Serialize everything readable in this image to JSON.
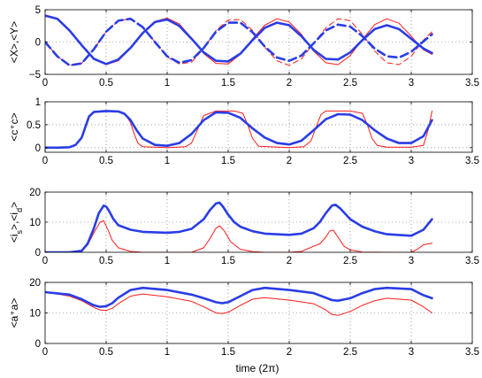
{
  "figure": {
    "xlabel": "time (2π)"
  },
  "chart_data": [
    {
      "type": "line",
      "ylabel": "<X>,<Y>",
      "xlim": [
        0,
        3.5
      ],
      "ylim": [
        -5,
        5
      ],
      "xticks": [
        "0",
        "0.5",
        "1",
        "1.5",
        "2",
        "2.5",
        "3",
        "3.5"
      ],
      "yticks": [
        "−5",
        "0",
        "5"
      ],
      "ytick_values": [
        -5,
        0,
        5
      ],
      "grid": true,
      "colors": {
        "thick": "#2a3de6",
        "thin": "#ff1a1a"
      },
      "series": [
        {
          "style": "thin-solid",
          "x": [
            0,
            0.1,
            0.2,
            0.3,
            0.4,
            0.5,
            0.6,
            0.7,
            0.8,
            0.9,
            1.0,
            1.1,
            1.2,
            1.3,
            1.4,
            1.5,
            1.6,
            1.7,
            1.8,
            1.9,
            2.0,
            2.1,
            2.2,
            2.3,
            2.4,
            2.5,
            2.6,
            2.7,
            2.8,
            2.9,
            3.0,
            3.1,
            3.17
          ],
          "y": [
            4.1,
            3.6,
            1.9,
            -0.4,
            -2.6,
            -3.5,
            -2.9,
            -1.0,
            1.4,
            3.2,
            3.7,
            2.8,
            0.6,
            -1.8,
            -3.3,
            -3.4,
            -1.9,
            0.5,
            2.6,
            3.6,
            3.1,
            1.2,
            -1.4,
            -3.2,
            -3.5,
            -2.1,
            0.4,
            2.7,
            3.6,
            2.9,
            0.9,
            -1.2,
            -1.9
          ]
        },
        {
          "style": "thin-dash",
          "x": [
            0,
            0.1,
            0.2,
            0.3,
            0.4,
            0.5,
            0.6,
            0.7,
            0.8,
            0.9,
            1.0,
            1.1,
            1.2,
            1.3,
            1.4,
            1.5,
            1.6,
            1.7,
            1.8,
            1.9,
            2.0,
            2.1,
            2.2,
            2.3,
            2.4,
            2.5,
            2.6,
            2.7,
            2.8,
            2.9,
            3.0,
            3.1,
            3.17
          ],
          "y": [
            0,
            -2.2,
            -3.6,
            -3.3,
            -1.1,
            1.6,
            3.3,
            3.6,
            2.3,
            0,
            -2.3,
            -3.4,
            -3.1,
            -1.0,
            1.8,
            3.4,
            3.5,
            1.8,
            -0.8,
            -2.9,
            -3.6,
            -2.6,
            -0.2,
            2.2,
            3.6,
            3.3,
            1.2,
            -1.4,
            -3.2,
            -3.5,
            -2.2,
            0.3,
            1.6
          ]
        },
        {
          "style": "thick-solid",
          "x": [
            0,
            0.1,
            0.2,
            0.3,
            0.4,
            0.5,
            0.6,
            0.7,
            0.8,
            0.9,
            1.0,
            1.1,
            1.2,
            1.3,
            1.4,
            1.5,
            1.6,
            1.7,
            1.8,
            1.9,
            2.0,
            2.1,
            2.2,
            2.3,
            2.4,
            2.5,
            2.6,
            2.7,
            2.8,
            2.9,
            3.0,
            3.1,
            3.17
          ],
          "y": [
            4.1,
            3.6,
            1.8,
            -0.5,
            -2.6,
            -3.4,
            -2.7,
            -0.9,
            1.4,
            3.1,
            3.5,
            2.5,
            0.5,
            -1.6,
            -2.9,
            -3.0,
            -1.8,
            0.3,
            2.2,
            3.0,
            2.6,
            0.9,
            -1.2,
            -2.6,
            -2.7,
            -1.6,
            0.3,
            2.0,
            2.6,
            2.0,
            0.5,
            -1.0,
            -1.7
          ]
        },
        {
          "style": "thick-dash",
          "x": [
            0,
            0.1,
            0.2,
            0.3,
            0.4,
            0.5,
            0.6,
            0.7,
            0.8,
            0.9,
            1.0,
            1.1,
            1.2,
            1.3,
            1.4,
            1.5,
            1.6,
            1.7,
            1.8,
            1.9,
            2.0,
            2.1,
            2.2,
            2.3,
            2.4,
            2.5,
            2.6,
            2.7,
            2.8,
            2.9,
            3.0,
            3.1,
            3.17
          ],
          "y": [
            0,
            -2.2,
            -3.6,
            -3.3,
            -1.1,
            1.6,
            3.3,
            3.6,
            2.3,
            0,
            -2.2,
            -3.2,
            -2.8,
            -0.9,
            1.6,
            3.0,
            3.0,
            1.5,
            -0.7,
            -2.4,
            -2.9,
            -2.1,
            -0.2,
            1.8,
            2.7,
            2.4,
            0.9,
            -1.0,
            -2.2,
            -2.4,
            -1.5,
            0.1,
            1.2
          ]
        }
      ]
    },
    {
      "type": "line",
      "ylabel": "<c⁺c>",
      "xlim": [
        0,
        3.5
      ],
      "ylim": [
        -0.1,
        1
      ],
      "xticks": [
        "0",
        "0.5",
        "1",
        "1.5",
        "2",
        "2.5",
        "3",
        "3.5"
      ],
      "yticks": [
        "0",
        "0.5",
        "1"
      ],
      "ytick_values": [
        0,
        0.5,
        1
      ],
      "grid": true,
      "colors": {
        "thick": "#2a3de6",
        "thin": "#ff1a1a"
      },
      "series": [
        {
          "style": "thin-solid",
          "x": [
            0,
            0.1,
            0.2,
            0.25,
            0.3,
            0.33,
            0.36,
            0.4,
            0.5,
            0.6,
            0.65,
            0.7,
            0.73,
            0.76,
            0.8,
            1.0,
            1.15,
            1.2,
            1.25,
            1.3,
            1.4,
            1.55,
            1.62,
            1.66,
            1.7,
            1.75,
            2.0,
            2.12,
            2.18,
            2.22,
            2.26,
            2.3,
            2.5,
            2.6,
            2.64,
            2.68,
            2.72,
            2.8,
            3.0,
            3.1,
            3.14,
            3.17
          ],
          "y": [
            0,
            0,
            0.01,
            0.05,
            0.2,
            0.45,
            0.7,
            0.78,
            0.8,
            0.79,
            0.75,
            0.55,
            0.3,
            0.1,
            0.02,
            0,
            0.02,
            0.1,
            0.4,
            0.7,
            0.8,
            0.8,
            0.75,
            0.5,
            0.2,
            0.03,
            0,
            0.02,
            0.15,
            0.45,
            0.72,
            0.8,
            0.8,
            0.75,
            0.5,
            0.2,
            0.05,
            0.01,
            0.01,
            0.05,
            0.4,
            0.8
          ]
        },
        {
          "style": "thick-solid",
          "x": [
            0,
            0.1,
            0.2,
            0.25,
            0.3,
            0.33,
            0.36,
            0.4,
            0.5,
            0.6,
            0.65,
            0.7,
            0.75,
            0.8,
            0.9,
            1.0,
            1.1,
            1.2,
            1.3,
            1.4,
            1.5,
            1.6,
            1.7,
            1.8,
            1.9,
            2.0,
            2.1,
            2.2,
            2.3,
            2.4,
            2.5,
            2.6,
            2.7,
            2.8,
            2.9,
            3.0,
            3.1,
            3.17
          ],
          "y": [
            0,
            0,
            0.01,
            0.06,
            0.22,
            0.45,
            0.68,
            0.78,
            0.8,
            0.79,
            0.74,
            0.6,
            0.38,
            0.2,
            0.06,
            0.04,
            0.1,
            0.3,
            0.6,
            0.77,
            0.76,
            0.65,
            0.42,
            0.22,
            0.1,
            0.07,
            0.15,
            0.38,
            0.62,
            0.73,
            0.72,
            0.6,
            0.38,
            0.2,
            0.1,
            0.1,
            0.25,
            0.6
          ]
        }
      ]
    },
    {
      "type": "line",
      "ylabel": "<i_s>,<i_d>",
      "xlim": [
        0,
        3.5
      ],
      "ylim": [
        0,
        20
      ],
      "xticks": [
        "0",
        "0.5",
        "1",
        "1.5",
        "2",
        "2.5",
        "3",
        "3.5"
      ],
      "yticks": [
        "0",
        "10",
        "20"
      ],
      "ytick_values": [
        0,
        10,
        20
      ],
      "grid": true,
      "colors": {
        "thick": "#2a3de6",
        "thin": "#ff1a1a"
      },
      "series": [
        {
          "style": "thin-solid",
          "x": [
            0,
            0.2,
            0.3,
            0.35,
            0.4,
            0.45,
            0.48,
            0.52,
            0.55,
            0.6,
            0.7,
            0.8,
            1.0,
            1.2,
            1.3,
            1.35,
            1.4,
            1.43,
            1.47,
            1.52,
            1.6,
            1.7,
            1.8,
            2.0,
            2.1,
            2.2,
            2.25,
            2.3,
            2.33,
            2.36,
            2.4,
            2.45,
            2.5,
            2.6,
            2.8,
            3.0,
            3.05,
            3.1,
            3.17
          ],
          "y": [
            0,
            0,
            0.3,
            2.5,
            6.5,
            10,
            10.5,
            7,
            4,
            1.5,
            0.3,
            0,
            0,
            0,
            1.5,
            4.5,
            8,
            8.8,
            7,
            3.5,
            1,
            0.2,
            0,
            0,
            0.3,
            2,
            2.8,
            5,
            7,
            7.4,
            5,
            2,
            0.8,
            0.1,
            0,
            0,
            1,
            2.5,
            3
          ]
        },
        {
          "style": "thick-solid",
          "x": [
            0,
            0.2,
            0.3,
            0.35,
            0.4,
            0.44,
            0.48,
            0.5,
            0.52,
            0.56,
            0.6,
            0.7,
            0.8,
            1.0,
            1.1,
            1.2,
            1.3,
            1.35,
            1.4,
            1.43,
            1.46,
            1.5,
            1.55,
            1.6,
            1.7,
            1.8,
            2.0,
            2.1,
            2.2,
            2.25,
            2.3,
            2.35,
            2.38,
            2.42,
            2.5,
            2.6,
            2.7,
            2.8,
            3.0,
            3.1,
            3.17
          ],
          "y": [
            0,
            0,
            0.5,
            3,
            8,
            13,
            15.5,
            15.2,
            14,
            11,
            9,
            7.5,
            6.8,
            6.5,
            6.8,
            7.8,
            11,
            14,
            16.2,
            16.5,
            15,
            12.5,
            10,
            8.5,
            7,
            6.2,
            5.8,
            6.2,
            8,
            10,
            13,
            15.5,
            15.8,
            14.5,
            11,
            8.5,
            7,
            6,
            5.5,
            7.5,
            11
          ]
        }
      ]
    },
    {
      "type": "line",
      "ylabel": "<a⁺a>",
      "xlim": [
        0,
        3.5
      ],
      "ylim": [
        0,
        20
      ],
      "xticks": [
        "0",
        "0.5",
        "1",
        "1.5",
        "2",
        "2.5",
        "3",
        "3.5"
      ],
      "yticks": [
        "0",
        "10",
        "20"
      ],
      "ytick_values": [
        0,
        10,
        20
      ],
      "grid": true,
      "colors": {
        "thick": "#2a3de6",
        "thin": "#ff1a1a"
      },
      "series": [
        {
          "style": "thin-solid",
          "x": [
            0,
            0.1,
            0.2,
            0.3,
            0.4,
            0.45,
            0.5,
            0.55,
            0.6,
            0.7,
            0.8,
            1.0,
            1.2,
            1.3,
            1.4,
            1.45,
            1.5,
            1.6,
            1.7,
            1.8,
            2.0,
            2.2,
            2.3,
            2.35,
            2.4,
            2.5,
            2.6,
            2.7,
            2.8,
            3.0,
            3.1,
            3.17
          ],
          "y": [
            16.8,
            16.2,
            15.5,
            14,
            11.8,
            11,
            10.8,
            11.5,
            13,
            15.5,
            16.2,
            15.3,
            13.8,
            12,
            10,
            9.8,
            10.2,
            12.5,
            14.5,
            15,
            14.2,
            13,
            11,
            9.5,
            9.2,
            10.5,
            12.5,
            14,
            14.8,
            14.2,
            12,
            10
          ]
        },
        {
          "style": "thick-solid",
          "x": [
            0,
            0.1,
            0.2,
            0.3,
            0.4,
            0.45,
            0.5,
            0.55,
            0.6,
            0.7,
            0.8,
            1.0,
            1.2,
            1.3,
            1.4,
            1.45,
            1.5,
            1.6,
            1.7,
            1.8,
            2.0,
            2.2,
            2.3,
            2.35,
            2.4,
            2.5,
            2.6,
            2.7,
            2.8,
            3.0,
            3.1,
            3.17
          ],
          "y": [
            16.8,
            16.4,
            16,
            14.5,
            12.5,
            12,
            12.2,
            13.2,
            15,
            17.5,
            18.2,
            17.5,
            16,
            14.8,
            13.5,
            13.2,
            13.5,
            15.5,
            17.5,
            18.2,
            17.5,
            16.5,
            15,
            14.2,
            14,
            14.8,
            16.5,
            17.8,
            18.2,
            17.8,
            15.8,
            14.8
          ]
        }
      ]
    }
  ]
}
